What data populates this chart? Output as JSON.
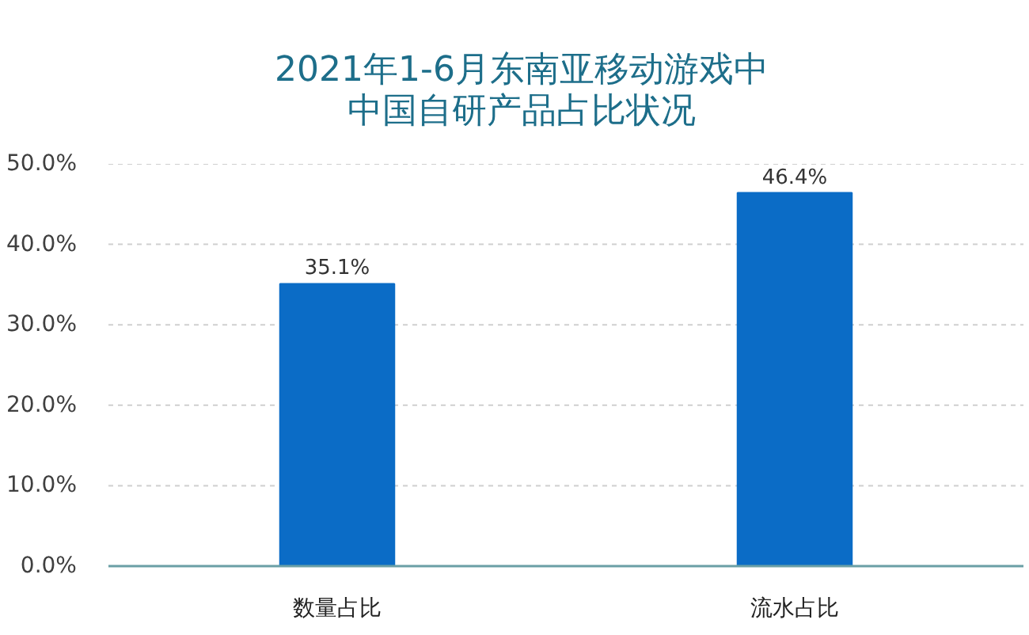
{
  "chart_data": {
    "type": "bar",
    "title": "2021年1-6月东南亚移动游戏中中国自研产品占比状况",
    "categories": [
      "数量占比",
      "流水占比"
    ],
    "values": [
      35.1,
      46.4
    ],
    "color": "#0b6cc6",
    "value_labels": [
      "35.1%",
      "46.4%"
    ],
    "ylim": [
      0,
      50
    ],
    "yticks": [
      {
        "value": 0,
        "label": "0.0%"
      },
      {
        "value": 10,
        "label": "10.0%"
      },
      {
        "value": 20,
        "label": "20.0%"
      },
      {
        "value": 30,
        "label": "30.0%"
      },
      {
        "value": 40,
        "label": "40.0%"
      },
      {
        "value": 50,
        "label": "50.0%"
      }
    ],
    "grid": "y"
  }
}
